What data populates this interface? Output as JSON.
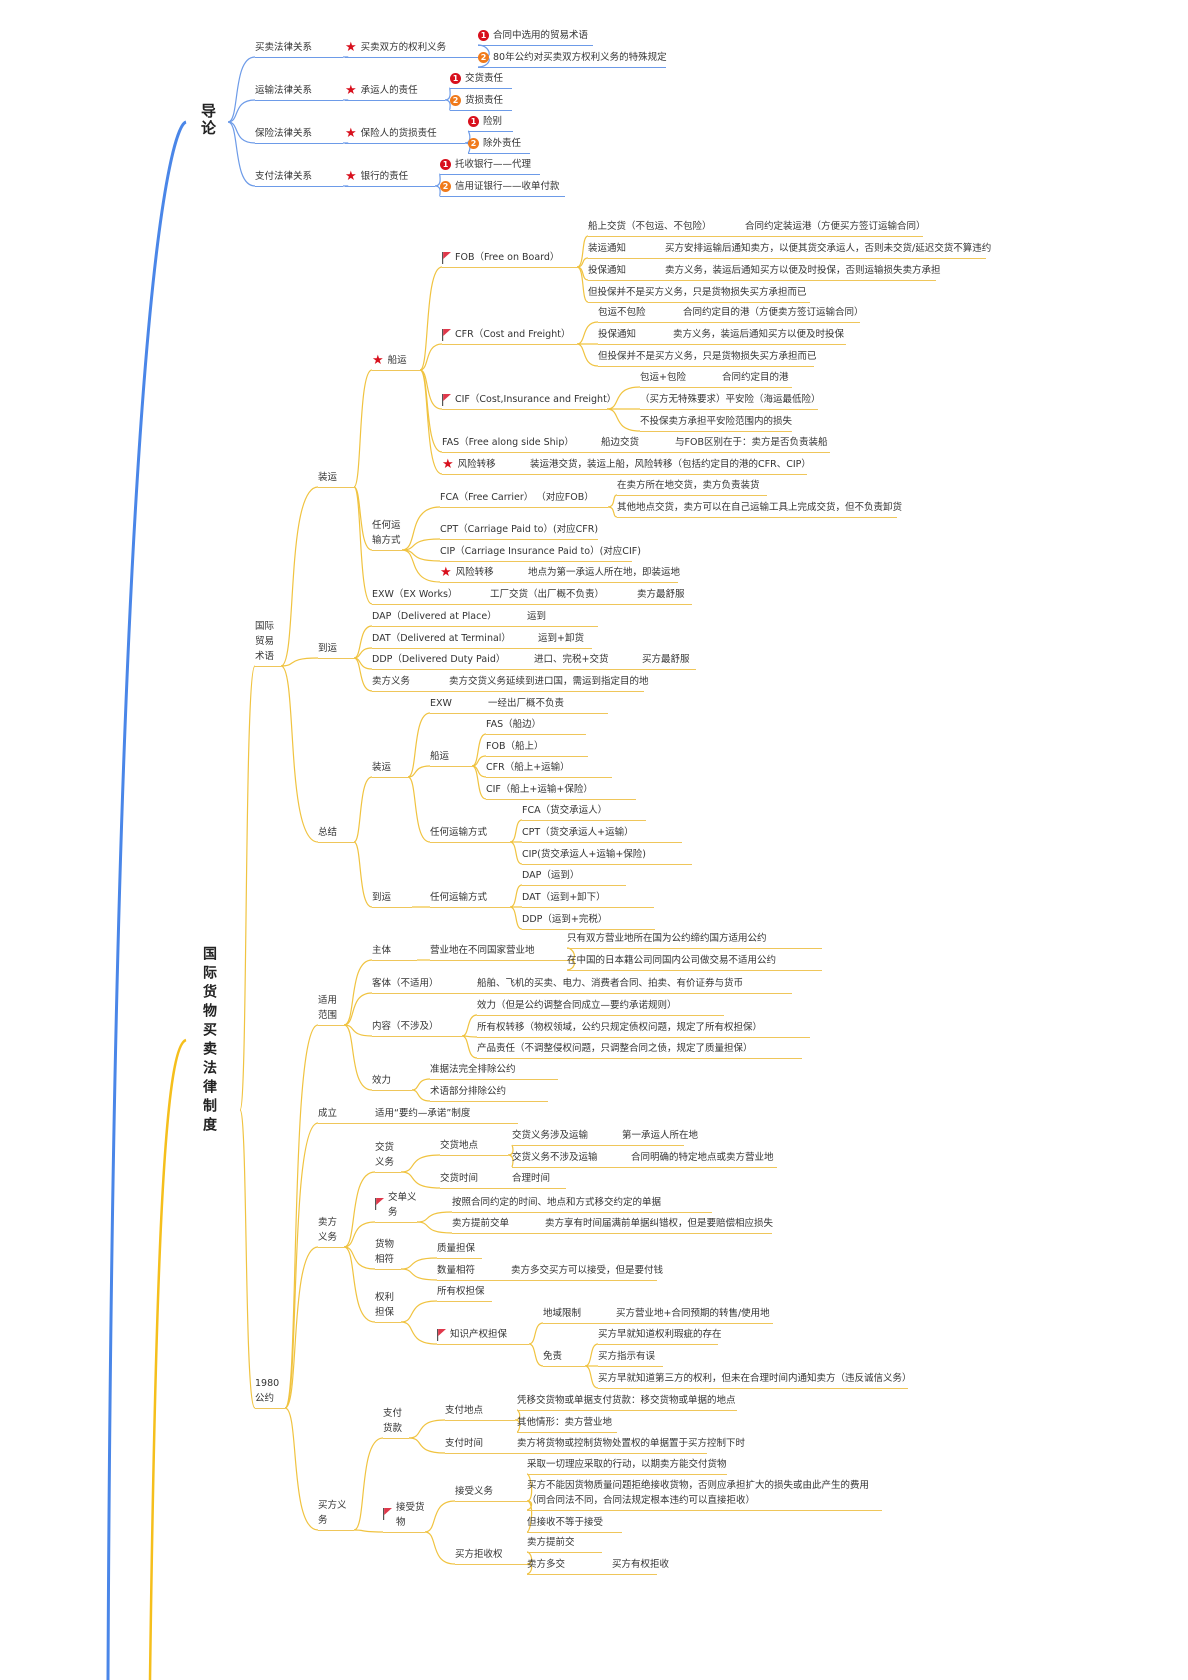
{
  "priority_labels": [
    "1",
    "2"
  ],
  "colors": {
    "intro_branch": "#5b8fe6",
    "main_branch": "#f3c33a",
    "star": "#d8101d",
    "priority1": "#d8101d",
    "priority2": "#f07a1c"
  },
  "intro": {
    "title": "导论",
    "items": [
      {
        "label": "买卖法律关系",
        "key": "买卖双方的权利义务",
        "points": [
          "合同中选用的贸易术语",
          "80年公约对买卖双方权利义务的特殊规定"
        ]
      },
      {
        "label": "运输法律关系",
        "key": "承运人的责任",
        "points": [
          "交货责任",
          "货损责任"
        ]
      },
      {
        "label": "保险法律关系",
        "key": "保险人的货损责任",
        "points": [
          "险别",
          "除外责任"
        ]
      },
      {
        "label": "支付法律关系",
        "key": "银行的责任",
        "points": [
          "托收银行——代理",
          "信用证银行——收单付款"
        ]
      }
    ]
  },
  "main": {
    "title": "国际货物买卖法律制度",
    "terms": {
      "label": "国际贸易术语",
      "shipment": {
        "label": "装运",
        "sea": {
          "label": "船运",
          "fob": {
            "label": "FOB（Free on Board）",
            "rows": [
              [
                "船上交货（不包运、不包险）",
                "合同约定装运港（方便买方签订运输合同）"
              ],
              [
                "装运通知",
                "买方安排运输后通知卖方，以便其货交承运人，否则未交货/延迟交货不算违约"
              ],
              [
                "投保通知",
                "卖方义务，装运后通知买方以便及时投保，否则运输损失卖方承担"
              ],
              [
                "但投保并不是买方义务，只是货物损失买方承担而已"
              ]
            ]
          },
          "cfr": {
            "label": "CFR（Cost and Freight）",
            "rows": [
              [
                "包运不包险",
                "合同约定目的港（方便卖方签订运输合同）"
              ],
              [
                "投保通知",
                "卖方义务，装运后通知买方以便及时投保"
              ],
              [
                "但投保并不是买方义务，只是货物损失买方承担而已"
              ]
            ]
          },
          "cif": {
            "label": "CIF（Cost,Insurance and Freight）",
            "rows": [
              [
                "包运+包险",
                "合同约定目的港"
              ],
              [
                "（买方无特殊要求）平安险（海运最低险）"
              ],
              [
                "不投保卖方承担平安险范围内的损失"
              ]
            ]
          },
          "fas": [
            "FAS（Free along side Ship）",
            "船边交货",
            "与FOB区别在于：卖方是否负责装船"
          ],
          "risk": [
            "风险转移",
            "装运港交货，装运上船，风险转移（包括约定目的港的CFR、CIP）"
          ]
        },
        "any": {
          "label": "任何运输方式",
          "fca": {
            "label": "FCA（Free Carrier） （对应FOB）",
            "rows": [
              "在卖方所在地交货，卖方负责装货",
              "其他地点交货，卖方可以在自己运输工具上完成交货，但不负责卸货"
            ]
          },
          "cpt": "CPT（Carriage Paid to）(对应CFR)",
          "cip": "CIP（Carriage Insurance Paid to）(对应CIF)",
          "risk": [
            "风险转移",
            "地点为第一承运人所在地，即装运地"
          ]
        },
        "exw": [
          "EXW（EX Works）",
          "工厂交货（出厂概不负责）",
          "卖方最舒服"
        ]
      },
      "arrival": {
        "label": "到运",
        "rows": [
          [
            "DAP（Delivered at Place）",
            "运到"
          ],
          [
            "DAT（Delivered at Terminal）",
            "运到+卸货"
          ],
          [
            "DDP（Delivered Duty Paid）",
            "进口、完税+交货",
            "买方最舒服"
          ],
          [
            "卖方义务",
            "卖方交货义务延续到进口国，需运到指定目的地"
          ]
        ]
      },
      "summary": {
        "label": "总结",
        "shipment": {
          "label": "装运",
          "exw": [
            "EXW",
            "一经出厂概不负责"
          ],
          "sea": {
            "label": "船运",
            "items": [
              "FAS（船边）",
              "FOB（船上）",
              "CFR（船上+运输）",
              "CIF（船上+运输+保险）"
            ]
          },
          "any": {
            "label": "任何运输方式",
            "items": [
              "FCA（货交承运人）",
              "CPT（货交承运人+运输）",
              "CIP(货交承运人+运输+保险)"
            ]
          }
        },
        "arrival": {
          "label": "到运",
          "mode": "任何运输方式",
          "items": [
            "DAP（运到）",
            "DAT（运到+卸下）",
            "DDP（运到+完税）"
          ]
        }
      }
    },
    "cisg": {
      "label": "1980公约",
      "scope": {
        "label": "适用范围",
        "subject": {
          "label": "主体",
          "value": "营业地在不同国家营业地",
          "notes": [
            "只有双方营业地所在国为公约缔约国方适用公约",
            "在中国的日本籍公司同国内公司做交易不适用公约"
          ]
        },
        "object": [
          "客体（不适用）",
          "船舶、飞机的买卖、电力、消费者合同、拍卖、有价证券与货币"
        ],
        "content": {
          "label": "内容（不涉及）",
          "items": [
            "效力（但是公约调整合同成立—要约承诺规则）",
            "所有权转移（物权领域，公约只规定债权问题，规定了所有权担保）",
            "产品责任（不调整侵权问题，只调整合同之债，规定了质量担保）"
          ]
        },
        "effect": {
          "label": "效力",
          "items": [
            "准据法完全排除公约",
            "术语部分排除公约"
          ]
        }
      },
      "formation": [
        "成立",
        "适用“要约—承诺”制度"
      ],
      "seller": {
        "label": "卖方义务",
        "delivery": {
          "label": "交货义务",
          "place": {
            "label": "交货地点",
            "rows": [
              [
                "交货义务涉及运输",
                "第一承运人所在地"
              ],
              [
                "交货义务不涉及运输",
                "合同明确的特定地点或卖方营业地"
              ]
            ]
          },
          "time": [
            "交货时间",
            "合理时间"
          ]
        },
        "documents": {
          "label": "交单义务",
          "rows": [
            [
              "按照合同约定的时间、地点和方式移交约定的单据"
            ],
            [
              "卖方提前交单",
              "卖方享有时间届满前单据纠错权，但是要赔偿相应损失"
            ]
          ]
        },
        "conformity": {
          "label": "货物相符",
          "rows": [
            [
              "质量担保"
            ],
            [
              "数量相符",
              "卖方多交买方可以接受，但是要付钱"
            ]
          ]
        },
        "title": {
          "label": "权利担保",
          "ownership": "所有权担保",
          "ip": {
            "label": "知识产权担保",
            "territory": [
              "地域限制",
              "买方营业地+合同预期的转售/使用地"
            ],
            "exemption": {
              "label": "免责",
              "items": [
                "买方早就知道权利瑕疵的存在",
                "买方指示有误",
                "买方早就知道第三方的权利，但未在合理时间内通知卖方（违反诚信义务）"
              ]
            }
          }
        }
      },
      "buyer": {
        "label": "买方义务",
        "payment": {
          "label": "支付货款",
          "place": {
            "label": "支付地点",
            "items": [
              "凭移交货物或单据支付货款：移交货物或单据的地点",
              "其他情形：卖方营业地"
            ]
          },
          "time": [
            "支付时间",
            "卖方将货物或控制货物处置权的单据置于买方控制下时"
          ]
        },
        "taking": {
          "label": "接受货物",
          "duty": {
            "label": "接受义务",
            "items": [
              "采取一切理应采取的行动，以期卖方能交付货物",
              "买方不能因货物质量问题拒绝接收货物，否则应承担扩大的损失或由此产生的费用（同合同法不同，合同法规定根本违约可以直接拒收）",
              "但接收不等于接受"
            ]
          },
          "reject": {
            "label": "买方拒收权",
            "rows": [
              [
                "卖方提前交"
              ],
              [
                "卖方多交",
                "买方有权拒收"
              ]
            ]
          }
        }
      }
    }
  }
}
